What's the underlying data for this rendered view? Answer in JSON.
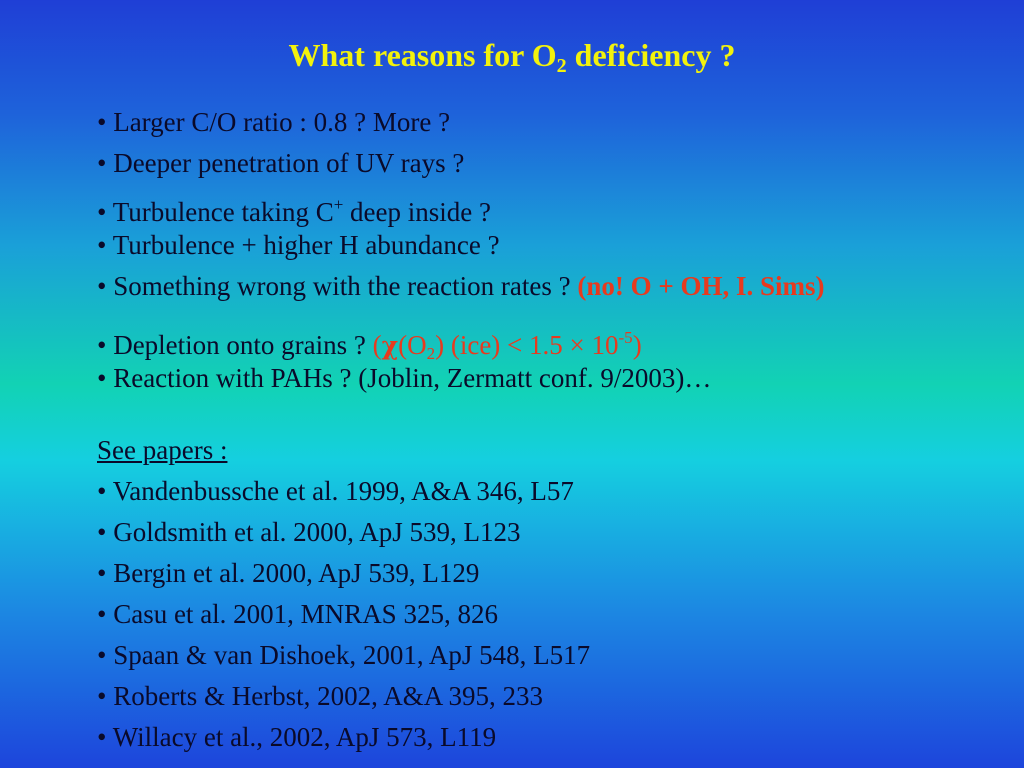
{
  "title": {
    "before": "What reasons for O",
    "sub": "2",
    "after": " deficiency ?"
  },
  "reasons": {
    "item1": "• Larger C/O ratio : 0.8 ? More ?",
    "item2": "• Deeper penetration of UV rays ?",
    "item3_before": "• Turbulence taking C",
    "item3_sup": "+",
    "item3_after": " deep inside ?",
    "item4": "• Turbulence + higher H abundance ?",
    "item5_text": "• Something wrong with the reaction rates ? ",
    "item5_note": "(no! O + OH, I. Sims)",
    "item6_text": "• Depletion onto grains ? ",
    "item6_red_open": "(",
    "item6_chi": "χ",
    "item6_o": "(O",
    "item6_sub": "2",
    "item6_rest": ") (ice) < 1.5 × 10",
    "item6_exp": "-5",
    "item6_close": ")",
    "item7": "• Reaction with PAHs ? (Joblin, Zermatt conf. 9/2003)…"
  },
  "papers": {
    "heading": "See papers :",
    "items": [
      "• Vandenbussche et al. 1999, A&A 346, L57",
      "• Goldsmith et al. 2000, ApJ 539, L123",
      "• Bergin et al. 2000, ApJ 539, L129",
      "• Casu et al. 2001, MNRAS 325, 826",
      "• Spaan & van Dishoek, 2001, ApJ 548, L517",
      "• Roberts & Herbst, 2002, A&A 395, 233",
      "• Willacy et al., 2002, ApJ 573, L119"
    ]
  },
  "colors": {
    "title": "#f2f20c",
    "highlight": "#e83a1e",
    "text": "#0a0a2a"
  }
}
